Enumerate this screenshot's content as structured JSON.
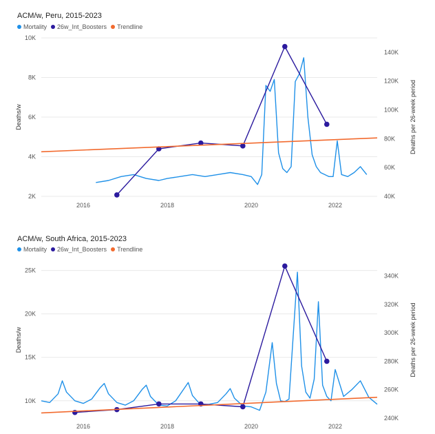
{
  "colors": {
    "mortality": "#1E90E8",
    "boosters": "#2B1A9E",
    "trendline": "#F26A2E",
    "grid": "#e9e9e9",
    "axis_text": "#555555"
  },
  "chart_data": [
    {
      "type": "line",
      "title": "ACM/w, Peru, 2015-2023",
      "legend": [
        "Mortality",
        "26w_Int_Boosters",
        "Trendline"
      ],
      "legend_position": "top-left",
      "ylabel_left": "Deaths/w",
      "ylabel_right": "Deaths per 26-week period",
      "xlim": [
        2015.0,
        2023.0
      ],
      "ylim_left": [
        2000,
        10000
      ],
      "ylim_right": [
        40000,
        150000
      ],
      "x_ticks": [
        "2016",
        "2018",
        "2020",
        "2022"
      ],
      "y_left_ticks": [
        "2K",
        "4K",
        "6K",
        "8K",
        "10K"
      ],
      "y_right_ticks": [
        "40K",
        "60K",
        "80K",
        "100K",
        "120K",
        "140K"
      ],
      "series": [
        {
          "name": "Mortality",
          "axis": "left",
          "x": [
            2016.3,
            2016.6,
            2016.9,
            2017.2,
            2017.5,
            2017.8,
            2018.0,
            2018.3,
            2018.6,
            2018.9,
            2019.2,
            2019.5,
            2019.8,
            2020.0,
            2020.15,
            2020.25,
            2020.35,
            2020.45,
            2020.55,
            2020.65,
            2020.75,
            2020.85,
            2020.95,
            2021.05,
            2021.15,
            2021.25,
            2021.35,
            2021.45,
            2021.55,
            2021.65,
            2021.75,
            2021.85,
            2021.95,
            2022.05,
            2022.15,
            2022.3,
            2022.45,
            2022.6,
            2022.75
          ],
          "values": [
            2700,
            2800,
            3000,
            3100,
            2900,
            2800,
            2900,
            3000,
            3100,
            3000,
            3100,
            3200,
            3100,
            3000,
            2600,
            3100,
            7600,
            7300,
            7900,
            4200,
            3400,
            3200,
            3500,
            7800,
            8200,
            9000,
            6000,
            4100,
            3500,
            3200,
            3100,
            3000,
            3000,
            4800,
            3100,
            3000,
            3200,
            3500,
            3100
          ]
        },
        {
          "name": "26w_Int_Boosters",
          "axis": "right",
          "x": [
            2016.8,
            2017.8,
            2018.8,
            2019.8,
            2020.8,
            2021.8
          ],
          "values": [
            41000,
            73000,
            77000,
            75000,
            144000,
            90000
          ]
        },
        {
          "name": "Trendline",
          "axis": "left",
          "x": [
            2015.0,
            2023.0
          ],
          "values": [
            4250,
            4950
          ]
        }
      ]
    },
    {
      "type": "line",
      "title": "ACM/w, South Africa, 2015-2023",
      "legend": [
        "Mortality",
        "26w_Int_Boosters",
        "Trendline"
      ],
      "legend_position": "top-left",
      "ylabel_left": "Deaths/w",
      "ylabel_right": "Deaths per 26-week period",
      "xlim": [
        2015.0,
        2023.0
      ],
      "ylim_left": [
        8000,
        26000
      ],
      "ylim_right": [
        240000,
        350000
      ],
      "x_ticks": [
        "2016",
        "2018",
        "2020",
        "2022"
      ],
      "y_left_ticks": [
        "10K",
        "15K",
        "20K",
        "25K"
      ],
      "y_right_ticks": [
        "240K",
        "260K",
        "280K",
        "300K",
        "320K",
        "340K"
      ],
      "series": [
        {
          "name": "Mortality",
          "axis": "left",
          "x": [
            2015.0,
            2015.2,
            2015.4,
            2015.5,
            2015.6,
            2015.8,
            2016.0,
            2016.2,
            2016.4,
            2016.5,
            2016.6,
            2016.8,
            2017.0,
            2017.2,
            2017.4,
            2017.5,
            2017.6,
            2017.8,
            2018.0,
            2018.2,
            2018.4,
            2018.5,
            2018.6,
            2018.8,
            2019.0,
            2019.2,
            2019.4,
            2019.5,
            2019.6,
            2019.8,
            2020.0,
            2020.2,
            2020.35,
            2020.5,
            2020.6,
            2020.7,
            2020.8,
            2020.9,
            2021.0,
            2021.1,
            2021.2,
            2021.3,
            2021.4,
            2021.5,
            2021.6,
            2021.7,
            2021.8,
            2021.9,
            2022.0,
            2022.2,
            2022.4,
            2022.6,
            2022.8,
            2023.0
          ],
          "values": [
            10000,
            9800,
            10800,
            12300,
            11000,
            10000,
            9700,
            10200,
            11500,
            12000,
            10800,
            9800,
            9500,
            10000,
            11300,
            11800,
            10500,
            9500,
            9400,
            10000,
            11400,
            12100,
            10600,
            9500,
            9600,
            9800,
            10800,
            11400,
            10300,
            9400,
            9300,
            8900,
            11000,
            16700,
            12000,
            10000,
            9900,
            10200,
            17500,
            24800,
            14000,
            11000,
            10300,
            12500,
            21400,
            11800,
            10500,
            10000,
            13600,
            10500,
            11300,
            12300,
            10400,
            9600
          ]
        },
        {
          "name": "26w_Int_Boosters",
          "axis": "right",
          "x": [
            2015.8,
            2016.8,
            2017.8,
            2018.8,
            2019.8,
            2020.8,
            2021.8
          ],
          "values": [
            244000,
            246000,
            250000,
            250000,
            248000,
            347000,
            280000
          ]
        },
        {
          "name": "Trendline",
          "axis": "left",
          "x": [
            2015.0,
            2023.0
          ],
          "values": [
            8600,
            10400
          ]
        }
      ]
    }
  ]
}
